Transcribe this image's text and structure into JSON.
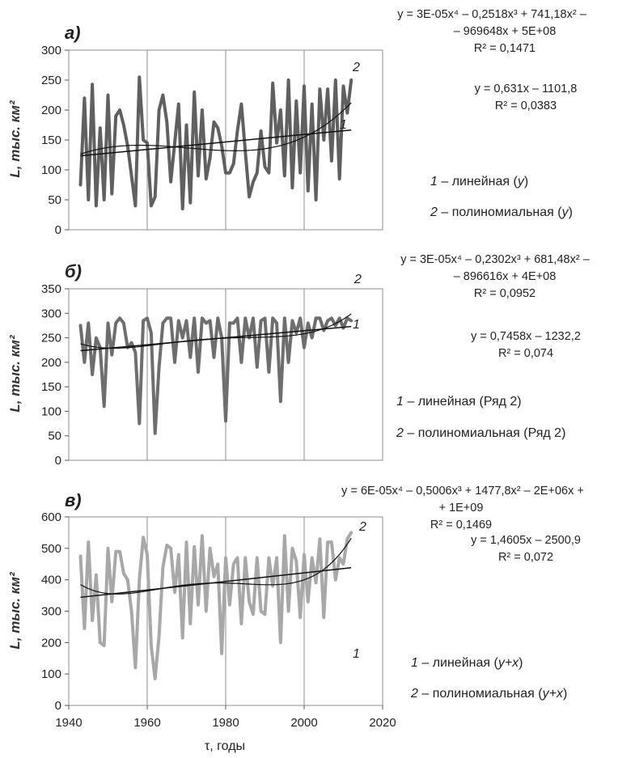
{
  "chart_data": [
    {
      "type": "line",
      "panel_label": "а)",
      "ylabel": "L, тыс. км²",
      "xlim": [
        1940,
        2020
      ],
      "ylim": [
        0,
        300
      ],
      "yticks": [
        0,
        50,
        100,
        150,
        200,
        250,
        300
      ],
      "series_color": "#606060",
      "x": [
        1943,
        1944,
        1945,
        1946,
        1947,
        1948,
        1949,
        1950,
        1951,
        1952,
        1953,
        1954,
        1955,
        1956,
        1957,
        1958,
        1959,
        1960,
        1961,
        1962,
        1963,
        1964,
        1965,
        1966,
        1967,
        1968,
        1969,
        1970,
        1971,
        1972,
        1973,
        1974,
        1975,
        1976,
        1977,
        1978,
        1979,
        1980,
        1981,
        1982,
        1983,
        1984,
        1985,
        1986,
        1987,
        1988,
        1989,
        1990,
        1991,
        1992,
        1993,
        1994,
        1995,
        1996,
        1997,
        1998,
        1999,
        2000,
        2001,
        2002,
        2003,
        2004,
        2005,
        2006,
        2007,
        2008,
        2009,
        2010,
        2011,
        2012
      ],
      "series": [
        {
          "values": [
            75,
            220,
            50,
            243,
            40,
            170,
            50,
            225,
            60,
            190,
            200,
            175,
            140,
            90,
            40,
            255,
            150,
            145,
            40,
            55,
            200,
            225,
            180,
            80,
            145,
            210,
            35,
            175,
            45,
            230,
            90,
            200,
            85,
            120,
            180,
            170,
            140,
            95,
            95,
            110,
            165,
            210,
            130,
            55,
            80,
            95,
            165,
            105,
            95,
            245,
            145,
            200,
            90,
            250,
            70,
            215,
            95,
            240,
            65,
            210,
            50,
            235,
            150,
            235,
            115,
            250,
            85,
            240,
            195,
            250
          ]
        }
      ],
      "trendline_labels": [
        "1",
        "2"
      ],
      "equations": {
        "poly_line1": "y = 3E-05x⁴ – 0,2518x³ + 741,18x² –",
        "poly_line2": "– 969648x + 5E+08",
        "poly_r2": "R² = 0,1471",
        "lin_eq": "y = 0,631x – 1101,8",
        "lin_r2": "R² = 0,0383"
      },
      "legend": [
        {
          "num": "1",
          "text": " – линейная (",
          "var": "y",
          "close": ")"
        },
        {
          "num": "2",
          "text": " – полиномиальная (",
          "var": "y",
          "close": ")"
        }
      ]
    },
    {
      "type": "line",
      "panel_label": "б)",
      "ylabel": "L, тыс. км²",
      "xlim": [
        1940,
        2020
      ],
      "ylim": [
        0,
        350
      ],
      "yticks": [
        0,
        50,
        100,
        150,
        200,
        250,
        300,
        350
      ],
      "series_color": "#6e6e6e",
      "x": [
        1943,
        1944,
        1945,
        1946,
        1947,
        1948,
        1949,
        1950,
        1951,
        1952,
        1953,
        1954,
        1955,
        1956,
        1957,
        1958,
        1959,
        1960,
        1961,
        1962,
        1963,
        1964,
        1965,
        1966,
        1967,
        1968,
        1969,
        1970,
        1971,
        1972,
        1973,
        1974,
        1975,
        1976,
        1977,
        1978,
        1979,
        1980,
        1981,
        1982,
        1983,
        1984,
        1985,
        1986,
        1987,
        1988,
        1989,
        1990,
        1991,
        1992,
        1993,
        1994,
        1995,
        1996,
        1997,
        1998,
        1999,
        2000,
        2001,
        2002,
        2003,
        2004,
        2005,
        2006,
        2007,
        2008,
        2009,
        2010,
        2011,
        2012
      ],
      "series": [
        {
          "values": [
            275,
            200,
            280,
            175,
            250,
            230,
            110,
            280,
            215,
            280,
            290,
            280,
            230,
            240,
            220,
            75,
            285,
            290,
            260,
            55,
            190,
            280,
            290,
            290,
            200,
            285,
            250,
            285,
            210,
            290,
            180,
            290,
            280,
            285,
            210,
            290,
            250,
            80,
            280,
            280,
            290,
            200,
            290,
            250,
            290,
            190,
            285,
            290,
            180,
            290,
            280,
            120,
            290,
            200,
            285,
            260,
            290,
            230,
            280,
            250,
            290,
            290,
            265,
            285,
            290,
            275,
            290,
            270,
            290,
            285
          ]
        }
      ],
      "trendline_labels": [
        "1",
        "2"
      ],
      "equations": {
        "poly_line1": "y = 3E-05x⁴ – 0,2302x³ + 681,48x² –",
        "poly_line2": "– 896616x + 4E+08",
        "poly_r2": "R² = 0,0952",
        "lin_eq": "y = 0,7458x – 1232,2",
        "lin_r2": "R² = 0,074"
      },
      "legend": [
        {
          "num": "1",
          "text": " – линейная (Ряд 2)",
          "var": "",
          "close": ""
        },
        {
          "num": "2",
          "text": " – полиномиальная (Ряд 2)",
          "var": "",
          "close": ""
        }
      ]
    },
    {
      "type": "line",
      "panel_label": "в)",
      "ylabel": "L, тыс. км²",
      "xlabel": "τ, годы",
      "xlim": [
        1940,
        2020
      ],
      "ylim": [
        0,
        600
      ],
      "yticks": [
        0,
        100,
        200,
        300,
        400,
        500,
        600
      ],
      "xticks": [
        1940,
        1960,
        1980,
        2000,
        2020
      ],
      "series_color": "#a8a8a8",
      "x": [
        1943,
        1944,
        1945,
        1946,
        1947,
        1948,
        1949,
        1950,
        1951,
        1952,
        1953,
        1954,
        1955,
        1956,
        1957,
        1958,
        1959,
        1960,
        1961,
        1962,
        1963,
        1964,
        1965,
        1966,
        1967,
        1968,
        1969,
        1970,
        1971,
        1972,
        1973,
        1974,
        1975,
        1976,
        1977,
        1978,
        1979,
        1980,
        1981,
        1982,
        1983,
        1984,
        1985,
        1986,
        1987,
        1988,
        1989,
        1990,
        1991,
        1992,
        1993,
        1994,
        1995,
        1996,
        1997,
        1998,
        1999,
        2000,
        2001,
        2002,
        2003,
        2004,
        2005,
        2006,
        2007,
        2008,
        2009,
        2010,
        2011,
        2012
      ],
      "series": [
        {
          "values": [
            475,
            245,
            520,
            270,
            415,
            200,
            190,
            500,
            330,
            490,
            490,
            420,
            400,
            300,
            120,
            400,
            535,
            480,
            190,
            85,
            220,
            440,
            510,
            500,
            360,
            480,
            215,
            520,
            260,
            505,
            320,
            540,
            300,
            500,
            410,
            450,
            165,
            470,
            320,
            450,
            470,
            260,
            470,
            330,
            290,
            470,
            300,
            290,
            470,
            380,
            470,
            200,
            540,
            300,
            500,
            460,
            280,
            480,
            330,
            470,
            390,
            530,
            280,
            520,
            520,
            400,
            470,
            450,
            530,
            550
          ]
        }
      ],
      "trendline_labels": [
        "1",
        "2"
      ],
      "equations": {
        "poly_line1": "y = 6E-05x⁴ – 0,5006x³ + 1477,8x² – 2E+06x +",
        "poly_line2": "+ 1E+09",
        "poly_r2": "R² = 0,1469",
        "lin_eq": "y = 1,4605x – 2500,9",
        "lin_r2": "R² = 0,072"
      },
      "legend": [
        {
          "num": "1",
          "text": " – линейная (",
          "var": "y+x",
          "close": ")"
        },
        {
          "num": "2",
          "text": " – полиномиальная (",
          "var": "y+x",
          "close": ")"
        }
      ]
    }
  ]
}
